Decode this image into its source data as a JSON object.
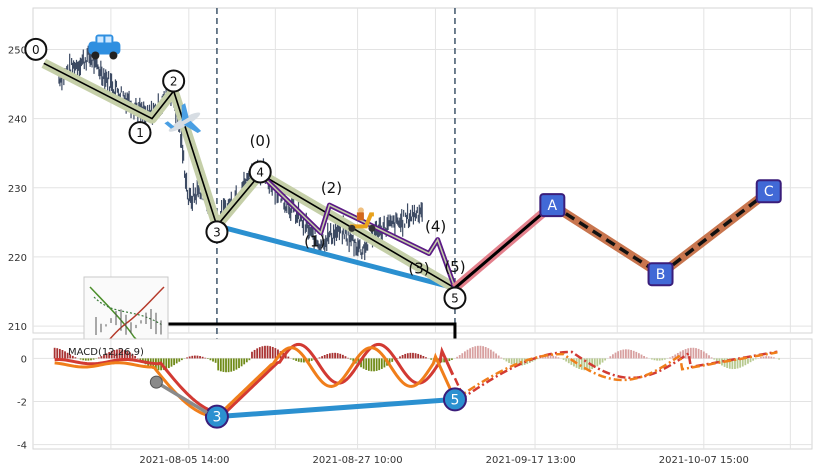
{
  "chart_data": {
    "type": "line",
    "title": "",
    "price_panel": {
      "ylim": [
        209,
        256
      ],
      "yticks": [
        210,
        220,
        230,
        240,
        250
      ],
      "wave_points": [
        {
          "label": "0",
          "x": 0.5,
          "y": 248
        },
        {
          "label": "1",
          "x": 5.5,
          "y": 240
        },
        {
          "label": "2",
          "x": 6.5,
          "y": 244
        },
        {
          "label": "3",
          "x": 8.5,
          "y": 224.5
        },
        {
          "label": "4",
          "x": 10.5,
          "y": 232
        },
        {
          "label": "5",
          "x": 19.5,
          "y": 215.5
        }
      ],
      "sub_wave_points": [
        {
          "label": "(0)",
          "x": 10.5,
          "y": 232
        },
        {
          "label": "(1)",
          "x": 13.3,
          "y": 223.5
        },
        {
          "label": "(2)",
          "x": 13.7,
          "y": 227.5
        },
        {
          "label": "(3)",
          "x": 18.3,
          "y": 220.5
        },
        {
          "label": "(4)",
          "x": 18.7,
          "y": 222.5
        },
        {
          "label": "(5)",
          "x": 19.5,
          "y": 215.5
        }
      ],
      "projection_points": [
        {
          "label": "A",
          "x": 24,
          "y": 227.5
        },
        {
          "label": "B",
          "x": 29,
          "y": 217.5
        },
        {
          "label": "C",
          "x": 34,
          "y": 229.5
        }
      ],
      "trend_line": [
        {
          "x": 8.5,
          "y": 224.5
        },
        {
          "x": 19.5,
          "y": 215.5
        }
      ]
    },
    "macd_panel": {
      "label": "MACD(12,26,9)",
      "ylim": [
        -4.2,
        0.9
      ],
      "yticks": [
        -4,
        -2,
        0
      ],
      "divergence_points": [
        {
          "label": "3",
          "x": 8.5,
          "y": -2.7
        },
        {
          "label": "5",
          "x": 19.5,
          "y": -1.9
        }
      ]
    },
    "x_tick_labels": [
      {
        "x": 7,
        "label": "2021-08-05 14:00"
      },
      {
        "x": 15,
        "label": "2021-08-27 10:00"
      },
      {
        "x": 23,
        "label": "2021-09-17 13:00"
      },
      {
        "x": 31,
        "label": "2021-10-07 15:00"
      }
    ],
    "vertical_markers": [
      8.5,
      19.5
    ],
    "grid": true,
    "colors": {
      "candle": "#3c4a63",
      "wave_line": "#000000",
      "wave_band": "#c5cfa8",
      "sub_wave": "#5b1a86",
      "trend": "#2b90d0",
      "proj_fill_1": "#e3808c",
      "proj_fill_2": "#c8754e",
      "proj_dash": "#111111",
      "box_fill": "#4169d6",
      "macd_line": "#f07e1b",
      "signal_line": "#d23a33",
      "hist_pos": "#a83232",
      "hist_neg": "#6f8b18"
    },
    "icons": [
      "car-icon",
      "airplane-icon",
      "scooter-icon",
      "mini-chart-thumbnail"
    ]
  }
}
